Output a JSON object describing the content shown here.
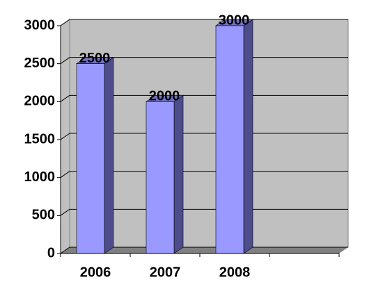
{
  "chart_data": {
    "type": "bar",
    "categories": [
      "2006",
      "2007",
      "2008",
      null
    ],
    "values": [
      2500,
      2000,
      3000,
      null
    ],
    "color": "#9999ff",
    "ylim": [
      0,
      3000
    ],
    "yticks": [
      0,
      500,
      1000,
      1500,
      2000,
      2500,
      3000
    ],
    "grid": true
  }
}
